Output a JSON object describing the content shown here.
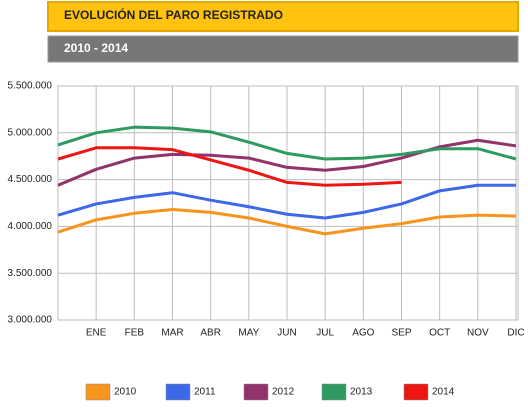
{
  "chart_data": {
    "type": "line",
    "title": "EVOLUCIÓN DEL PARO REGISTRADO",
    "subtitle": "2010 - 2014",
    "categories": [
      null,
      "ENE",
      "FEB",
      "MAR",
      "ABR",
      "MAY",
      "JUN",
      "JUL",
      "AGO",
      "SEP",
      "OCT",
      "NOV",
      "DIC"
    ],
    "series": [
      {
        "name": "2010",
        "color": "#f7941d",
        "values": [
          3940000,
          4070000,
          4140000,
          4180000,
          4150000,
          4090000,
          4000000,
          3920000,
          3980000,
          4030000,
          4100000,
          4120000,
          4110000
        ]
      },
      {
        "name": "2011",
        "color": "#3d68e8",
        "values": [
          4120000,
          4240000,
          4310000,
          4360000,
          4280000,
          4210000,
          4130000,
          4090000,
          4150000,
          4240000,
          4380000,
          4440000,
          4440000
        ]
      },
      {
        "name": "2012",
        "color": "#93336b",
        "values": [
          4440000,
          4610000,
          4730000,
          4770000,
          4760000,
          4730000,
          4630000,
          4600000,
          4640000,
          4730000,
          4850000,
          4920000,
          4860000
        ]
      },
      {
        "name": "2013",
        "color": "#2e9a62",
        "values": [
          4870000,
          5000000,
          5060000,
          5050000,
          5010000,
          4900000,
          4780000,
          4720000,
          4730000,
          4770000,
          4830000,
          4830000,
          4720000
        ]
      },
      {
        "name": "2014",
        "color": "#ee1515",
        "values": [
          4720000,
          4840000,
          4840000,
          4820000,
          4710000,
          4600000,
          4470000,
          4440000,
          4450000,
          4470000,
          null,
          null,
          null
        ]
      }
    ],
    "ylim": [
      3000000,
      5500000
    ],
    "yticks": [
      {
        "value": 3000000,
        "label": "3.000.000"
      },
      {
        "value": 3500000,
        "label": "3.500.000"
      },
      {
        "value": 4000000,
        "label": "4.000.000"
      },
      {
        "value": 4500000,
        "label": "4.500.000"
      },
      {
        "value": 5000000,
        "label": "5.000.000"
      },
      {
        "value": 5500000,
        "label": "5.500.000"
      }
    ],
    "grid": true,
    "legend": "bottom"
  }
}
